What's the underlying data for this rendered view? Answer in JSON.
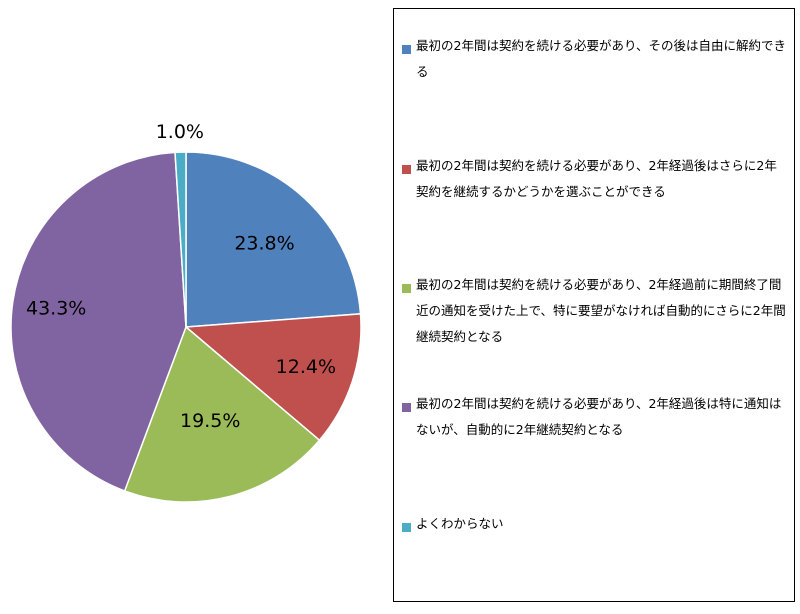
{
  "chart_data": {
    "type": "pie",
    "slices": [
      {
        "name": "最初の2年間は契約を続ける必要があり、その後は自由に解約できる",
        "value": 23.8,
        "label": "23.8%",
        "color": "#4F81BD"
      },
      {
        "name": "最初の2年間は契約を続ける必要があり、2年経過後はさらに2年契約を継続するかどうかを選ぶことができる",
        "value": 12.4,
        "label": "12.4%",
        "color": "#C0504D"
      },
      {
        "name": "最初の2年間は契約を続ける必要があり、2年経過前に期間終了間近の通知を受けた上で、特に要望がなければ自動的にさらに2年間継続契約となる",
        "value": 19.5,
        "label": "19.5%",
        "color": "#9BBB59"
      },
      {
        "name": "最初の2年間は契約を続ける必要があり、2年経過後は特に通知はないが、自動的に2年継続契約となる",
        "value": 43.3,
        "label": "43.3%",
        "color": "#8064A2"
      },
      {
        "name": "よくわからない",
        "value": 1.0,
        "label": "1.0%",
        "color": "#4BACC6"
      }
    ],
    "start_angle": "top (12 o'clock)",
    "direction": "clockwise",
    "legend_position": "right"
  }
}
